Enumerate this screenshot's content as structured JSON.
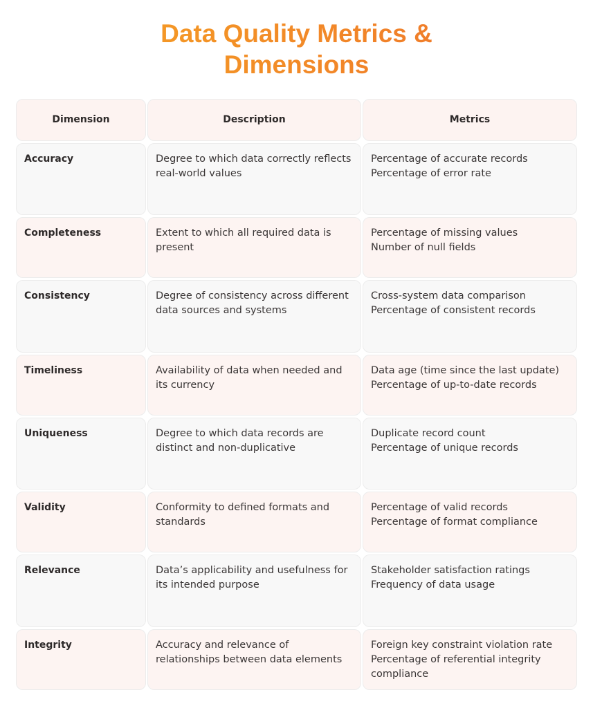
{
  "title_line1": "Data Quality Metrics &",
  "title_line2": "Dimensions",
  "colors": {
    "title_start": "#f6a623",
    "title_end": "#ee6f2c",
    "header_bg": "#fdf3f1",
    "row_gray": "#f8f8f8",
    "row_pink": "#fdf4f2"
  },
  "headers": [
    "Dimension",
    "Description",
    "Metrics"
  ],
  "rows": [
    {
      "dimension": "Accuracy",
      "description": "Degree to which data correctly reflects real-world values",
      "metrics": [
        "Percentage of accurate records",
        "Percentage of error rate"
      ]
    },
    {
      "dimension": "Completeness",
      "description": "Extent to which all required data is present",
      "metrics": [
        "Percentage of missing values",
        "Number of null fields"
      ]
    },
    {
      "dimension": "Consistency",
      "description": "Degree of consistency across different data sources and systems",
      "metrics": [
        "Cross-system data comparison",
        "Percentage of consistent records"
      ]
    },
    {
      "dimension": "Timeliness",
      "description": "Availability of data when needed and its currency",
      "metrics": [
        "Data age (time since the last update)",
        "Percentage of up-to-date records"
      ]
    },
    {
      "dimension": "Uniqueness",
      "description": "Degree to which data records are distinct and non-duplicative",
      "metrics": [
        "Duplicate record count",
        "Percentage of unique records"
      ]
    },
    {
      "dimension": "Validity",
      "description": "Conformity to defined formats and standards",
      "metrics": [
        "Percentage of valid records",
        "Percentage of format compliance"
      ]
    },
    {
      "dimension": "Relevance",
      "description": "Data’s applicability and usefulness for its intended purpose",
      "metrics": [
        "Stakeholder satisfaction ratings",
        "Frequency of data usage"
      ]
    },
    {
      "dimension": "Integrity",
      "description": "Accuracy and relevance of relationships between data elements",
      "metrics": [
        "Foreign key constraint violation rate",
        "Percentage of referential integrity compliance"
      ]
    }
  ]
}
